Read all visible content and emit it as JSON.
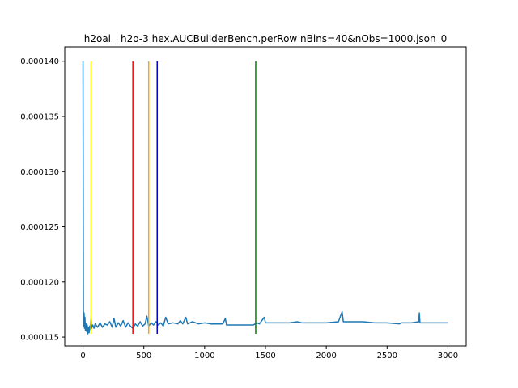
{
  "chart_data": {
    "type": "line",
    "title": "h2oai__h2o-3 hex.AUCBuilderBench.perRow nBins=40&nObs=1000.json_0",
    "xlabel": "",
    "ylabel": "",
    "xlim": [
      -150,
      3150
    ],
    "ylim": [
      0.0001142,
      0.0001413
    ],
    "grid": false,
    "x_ticks": [
      0,
      500,
      1000,
      1500,
      2000,
      2500,
      3000
    ],
    "x_tick_labels": [
      "0",
      "500",
      "1000",
      "1500",
      "2000",
      "2500",
      "3000"
    ],
    "y_ticks": [
      0.000115,
      0.00012,
      0.000125,
      0.00013,
      0.000135,
      0.00014
    ],
    "y_tick_labels": [
      "0.000115",
      "0.000120",
      "0.000125",
      "0.000130",
      "0.000135",
      "0.000140"
    ],
    "series": [
      {
        "color": "#1f77b4",
        "points": [
          [
            0,
            0.00014
          ],
          [
            3,
            0.0001175
          ],
          [
            6,
            0.000116
          ],
          [
            9,
            0.0001172
          ],
          [
            12,
            0.0001158
          ],
          [
            16,
            0.0001168
          ],
          [
            20,
            0.0001156
          ],
          [
            25,
            0.0001162
          ],
          [
            30,
            0.0001155
          ],
          [
            35,
            0.0001161
          ],
          [
            40,
            0.0001153
          ],
          [
            45,
            0.0001159
          ],
          [
            50,
            0.0001154
          ],
          [
            55,
            0.000116
          ],
          [
            60,
            0.0001157
          ],
          [
            65,
            0.0001168
          ],
          [
            70,
            0.0001158
          ],
          [
            80,
            0.0001161
          ],
          [
            90,
            0.0001158
          ],
          [
            100,
            0.0001162
          ],
          [
            120,
            0.0001159
          ],
          [
            140,
            0.0001163
          ],
          [
            160,
            0.0001159
          ],
          [
            180,
            0.0001162
          ],
          [
            200,
            0.0001161
          ],
          [
            220,
            0.0001164
          ],
          [
            240,
            0.0001159
          ],
          [
            255,
            0.0001167
          ],
          [
            270,
            0.0001159
          ],
          [
            290,
            0.0001163
          ],
          [
            310,
            0.000116
          ],
          [
            330,
            0.0001165
          ],
          [
            350,
            0.0001159
          ],
          [
            370,
            0.0001163
          ],
          [
            390,
            0.000116
          ],
          [
            410,
            0.0001158
          ],
          [
            430,
            0.0001162
          ],
          [
            450,
            0.000116
          ],
          [
            470,
            0.0001164
          ],
          [
            490,
            0.000116
          ],
          [
            510,
            0.0001162
          ],
          [
            525,
            0.0001169
          ],
          [
            540,
            0.000116
          ],
          [
            560,
            0.0001163
          ],
          [
            580,
            0.0001161
          ],
          [
            600,
            0.0001164
          ],
          [
            620,
            0.0001161
          ],
          [
            640,
            0.0001163
          ],
          [
            660,
            0.000116
          ],
          [
            680,
            0.0001168
          ],
          [
            700,
            0.0001162
          ],
          [
            740,
            0.0001163
          ],
          [
            780,
            0.0001162
          ],
          [
            800,
            0.0001165
          ],
          [
            820,
            0.0001162
          ],
          [
            845,
            0.0001168
          ],
          [
            860,
            0.0001162
          ],
          [
            900,
            0.0001164
          ],
          [
            950,
            0.0001162
          ],
          [
            1000,
            0.0001163
          ],
          [
            1050,
            0.0001162
          ],
          [
            1100,
            0.0001162
          ],
          [
            1150,
            0.0001162
          ],
          [
            1170,
            0.0001167
          ],
          [
            1180,
            0.0001161
          ],
          [
            1250,
            0.0001161
          ],
          [
            1300,
            0.0001161
          ],
          [
            1350,
            0.0001161
          ],
          [
            1400,
            0.0001161
          ],
          [
            1430,
            0.0001163
          ],
          [
            1450,
            0.0001162
          ],
          [
            1490,
            0.0001168
          ],
          [
            1500,
            0.0001163
          ],
          [
            1600,
            0.0001163
          ],
          [
            1700,
            0.0001163
          ],
          [
            1760,
            0.0001164
          ],
          [
            1800,
            0.0001163
          ],
          [
            1900,
            0.0001163
          ],
          [
            2000,
            0.0001163
          ],
          [
            2100,
            0.0001164
          ],
          [
            2130,
            0.0001173
          ],
          [
            2140,
            0.0001164
          ],
          [
            2200,
            0.0001164
          ],
          [
            2300,
            0.0001164
          ],
          [
            2400,
            0.0001163
          ],
          [
            2500,
            0.0001163
          ],
          [
            2600,
            0.0001162
          ],
          [
            2620,
            0.0001163
          ],
          [
            2700,
            0.0001163
          ],
          [
            2760,
            0.0001164
          ],
          [
            2765,
            0.0001172
          ],
          [
            2770,
            0.0001163
          ],
          [
            2850,
            0.0001163
          ],
          [
            2950,
            0.0001163
          ],
          [
            3000,
            0.0001163
          ]
        ]
      }
    ],
    "vertical_lines": [
      {
        "x": 65,
        "color": "#ffff00"
      },
      {
        "x": 410,
        "color": "#ff0000"
      },
      {
        "x": 540,
        "color": "#ffa500"
      },
      {
        "x": 610,
        "color": "#0000cc"
      },
      {
        "x": 1420,
        "color": "#008000"
      }
    ],
    "vertical_line_range": [
      0.0001153,
      0.00014
    ]
  }
}
